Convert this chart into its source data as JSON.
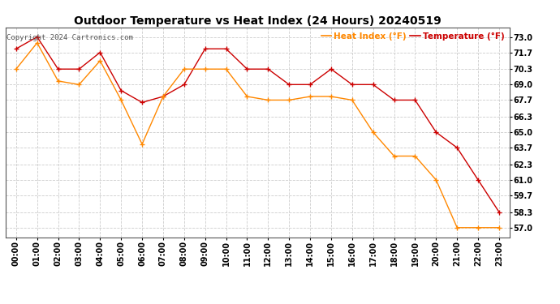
{
  "title": "Outdoor Temperature vs Heat Index (24 Hours) 20240519",
  "copyright": "Copyright 2024 Cartronics.com",
  "legend_heat": "Heat Index (°F)",
  "legend_temp": "Temperature (°F)",
  "hours": [
    "00:00",
    "01:00",
    "02:00",
    "03:00",
    "04:00",
    "05:00",
    "06:00",
    "07:00",
    "08:00",
    "09:00",
    "10:00",
    "11:00",
    "12:00",
    "13:00",
    "14:00",
    "15:00",
    "16:00",
    "17:00",
    "18:00",
    "19:00",
    "20:00",
    "21:00",
    "22:00",
    "23:00"
  ],
  "temperature": [
    72.0,
    73.0,
    70.3,
    70.3,
    71.7,
    68.5,
    67.5,
    68.0,
    69.0,
    72.0,
    72.0,
    70.3,
    70.3,
    69.0,
    69.0,
    70.3,
    69.0,
    69.0,
    67.7,
    67.7,
    65.0,
    63.7,
    61.0,
    58.3
  ],
  "heat_index": [
    70.3,
    72.5,
    69.3,
    69.0,
    71.0,
    67.7,
    64.0,
    68.0,
    70.3,
    70.3,
    70.3,
    68.0,
    67.7,
    67.7,
    68.0,
    68.0,
    67.7,
    65.0,
    63.0,
    63.0,
    61.0,
    57.0,
    57.0,
    57.0
  ],
  "temp_color": "#cc0000",
  "heat_color": "#ff8800",
  "background_color": "#ffffff",
  "grid_color": "#cccccc",
  "yticks": [
    57.0,
    58.3,
    59.7,
    61.0,
    62.3,
    63.7,
    65.0,
    66.3,
    67.7,
    69.0,
    70.3,
    71.7,
    73.0
  ],
  "ylim": [
    56.2,
    73.8
  ],
  "title_fontsize": 10,
  "axis_fontsize": 7,
  "copyright_fontsize": 6.5
}
